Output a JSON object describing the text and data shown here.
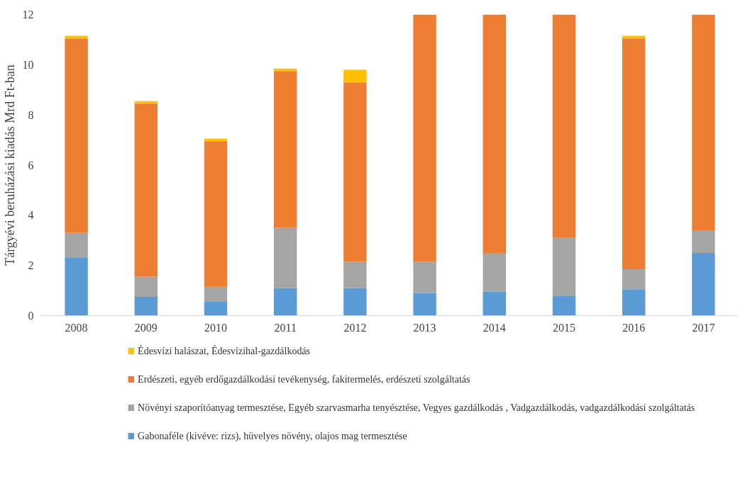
{
  "chart_data": {
    "type": "bar",
    "stacked": true,
    "ylabel": "Tárgyévi beruházási kiadás Mrd Ft-ban",
    "categories": [
      "2008",
      "2009",
      "2010",
      "2011",
      "2012",
      "2013",
      "2014",
      "2015",
      "2016",
      "2017"
    ],
    "series": [
      {
        "name": "Gabonaféle (kivéve: rizs), hüvelyes növény, olajos mag termesztése",
        "color": "#5b9bd5",
        "values": [
          2.3,
          0.75,
          0.55,
          1.1,
          1.1,
          0.9,
          0.95,
          0.8,
          1.05,
          2.5
        ]
      },
      {
        "name": "Növényi szaporítóanyag termesztése, Egyéb szarvasmarha tenyésztése, Vegyes gazdálkodás , Vadgazdálkodás, vadgazdálkodási szolgáltatás",
        "color": "#a5a5a5",
        "values": [
          1.0,
          0.8,
          0.6,
          2.4,
          1.05,
          1.25,
          1.55,
          2.3,
          0.8,
          0.9
        ]
      },
      {
        "name": "Erdészeti, egyéb erdőgazdálkodási tevékenység, fakitermelés, erdészeti szolgáltatás",
        "color": "#ed7d31",
        "values": [
          7.75,
          6.9,
          5.8,
          6.25,
          7.15,
          9.85,
          9.5,
          8.9,
          9.2,
          8.6
        ]
      },
      {
        "name": "Édesvízi halászat, Édesvízihal-gazdálkodás",
        "color": "#ffc000",
        "values": [
          0.1,
          0.1,
          0.1,
          0.1,
          0.5,
          null,
          null,
          null,
          0.1,
          null
        ]
      }
    ],
    "ylim": [
      0,
      12
    ],
    "yticks": [
      0,
      2,
      4,
      6,
      8,
      10,
      12
    ],
    "grid": false,
    "legend": "bottom"
  }
}
